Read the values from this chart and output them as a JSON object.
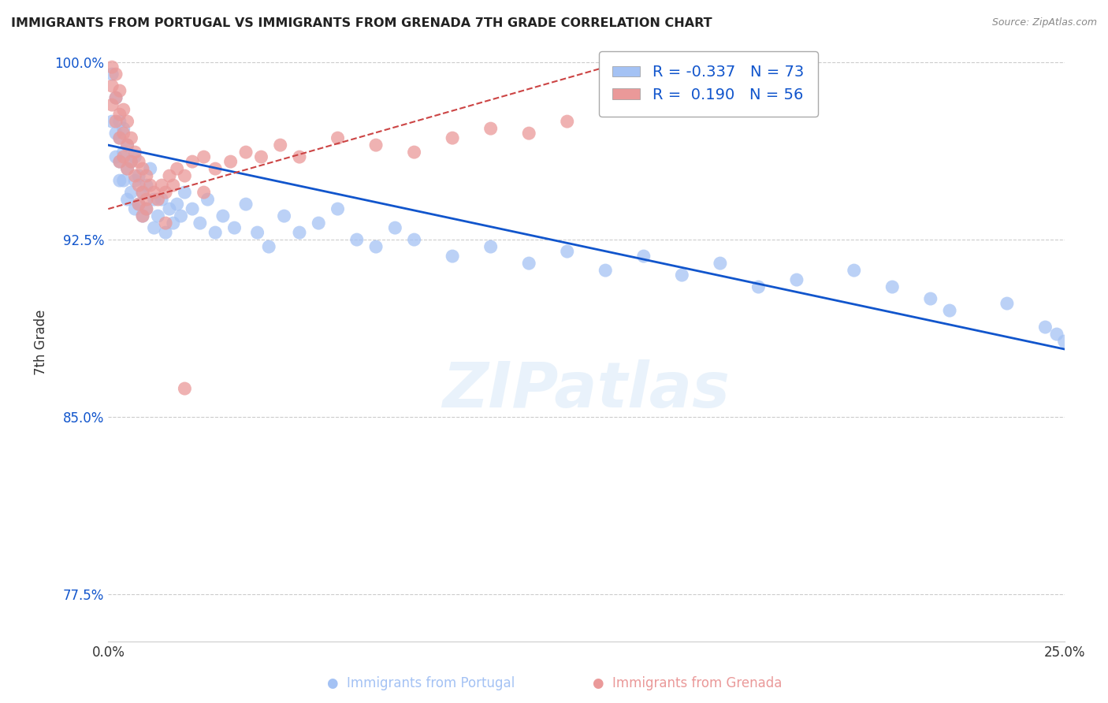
{
  "title": "IMMIGRANTS FROM PORTUGAL VS IMMIGRANTS FROM GRENADA 7TH GRADE CORRELATION CHART",
  "source": "Source: ZipAtlas.com",
  "ylabel": "7th Grade",
  "xlim": [
    0.0,
    0.25
  ],
  "ylim": [
    0.755,
    1.008
  ],
  "yticks": [
    0.775,
    0.85,
    0.925,
    1.0
  ],
  "ytick_labels": [
    "77.5%",
    "85.0%",
    "92.5%",
    "100.0%"
  ],
  "blue_color": "#a4c2f4",
  "pink_color": "#ea9999",
  "blue_line_color": "#1155cc",
  "pink_line_color": "#cc4444",
  "R_blue": -0.337,
  "N_blue": 73,
  "R_pink": 0.19,
  "N_pink": 56,
  "watermark": "ZIPatlas",
  "blue_scatter_x": [
    0.001,
    0.001,
    0.002,
    0.002,
    0.002,
    0.003,
    0.003,
    0.003,
    0.003,
    0.004,
    0.004,
    0.004,
    0.005,
    0.005,
    0.005,
    0.006,
    0.006,
    0.007,
    0.007,
    0.007,
    0.008,
    0.008,
    0.009,
    0.009,
    0.01,
    0.01,
    0.011,
    0.012,
    0.012,
    0.013,
    0.014,
    0.015,
    0.016,
    0.017,
    0.018,
    0.019,
    0.02,
    0.022,
    0.024,
    0.026,
    0.028,
    0.03,
    0.033,
    0.036,
    0.039,
    0.042,
    0.046,
    0.05,
    0.055,
    0.06,
    0.065,
    0.07,
    0.075,
    0.08,
    0.09,
    0.1,
    0.11,
    0.12,
    0.13,
    0.14,
    0.15,
    0.16,
    0.17,
    0.18,
    0.195,
    0.205,
    0.215,
    0.22,
    0.235,
    0.245,
    0.248,
    0.25,
    0.252
  ],
  "blue_scatter_y": [
    0.995,
    0.975,
    0.985,
    0.97,
    0.96,
    0.975,
    0.968,
    0.958,
    0.95,
    0.972,
    0.962,
    0.95,
    0.965,
    0.955,
    0.942,
    0.958,
    0.945,
    0.96,
    0.95,
    0.938,
    0.952,
    0.94,
    0.945,
    0.935,
    0.948,
    0.938,
    0.955,
    0.942,
    0.93,
    0.935,
    0.942,
    0.928,
    0.938,
    0.932,
    0.94,
    0.935,
    0.945,
    0.938,
    0.932,
    0.942,
    0.928,
    0.935,
    0.93,
    0.94,
    0.928,
    0.922,
    0.935,
    0.928,
    0.932,
    0.938,
    0.925,
    0.922,
    0.93,
    0.925,
    0.918,
    0.922,
    0.915,
    0.92,
    0.912,
    0.918,
    0.91,
    0.915,
    0.905,
    0.908,
    0.912,
    0.905,
    0.9,
    0.895,
    0.898,
    0.888,
    0.885,
    0.882,
    0.878
  ],
  "pink_scatter_x": [
    0.001,
    0.001,
    0.001,
    0.002,
    0.002,
    0.002,
    0.003,
    0.003,
    0.003,
    0.003,
    0.004,
    0.004,
    0.004,
    0.005,
    0.005,
    0.005,
    0.006,
    0.006,
    0.007,
    0.007,
    0.008,
    0.008,
    0.009,
    0.009,
    0.01,
    0.01,
    0.011,
    0.012,
    0.013,
    0.014,
    0.015,
    0.016,
    0.017,
    0.018,
    0.02,
    0.022,
    0.025,
    0.028,
    0.032,
    0.036,
    0.04,
    0.045,
    0.05,
    0.06,
    0.07,
    0.08,
    0.09,
    0.1,
    0.11,
    0.12,
    0.008,
    0.009,
    0.01,
    0.015,
    0.02,
    0.025
  ],
  "pink_scatter_y": [
    0.998,
    0.99,
    0.982,
    0.995,
    0.985,
    0.975,
    0.988,
    0.978,
    0.968,
    0.958,
    0.98,
    0.97,
    0.96,
    0.975,
    0.965,
    0.955,
    0.968,
    0.958,
    0.962,
    0.952,
    0.958,
    0.948,
    0.955,
    0.945,
    0.952,
    0.942,
    0.948,
    0.945,
    0.942,
    0.948,
    0.945,
    0.952,
    0.948,
    0.955,
    0.952,
    0.958,
    0.96,
    0.955,
    0.958,
    0.962,
    0.96,
    0.965,
    0.96,
    0.968,
    0.965,
    0.962,
    0.968,
    0.972,
    0.97,
    0.975,
    0.94,
    0.935,
    0.938,
    0.932,
    0.862,
    0.945
  ],
  "blue_line_x0": 0.0,
  "blue_line_x1": 0.252,
  "blue_line_y0": 0.965,
  "blue_line_y1": 0.878,
  "pink_line_x0": 0.0,
  "pink_line_x1": 0.13,
  "pink_line_y0": 0.938,
  "pink_line_y1": 0.998
}
